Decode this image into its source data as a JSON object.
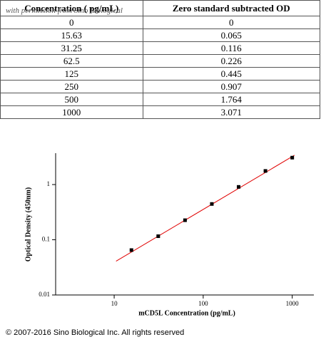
{
  "table": {
    "header": [
      "Concentration ( pg/mL)",
      "Zero standard subtracted OD"
    ],
    "watermark": "with permission from Sino Biological",
    "rows": [
      [
        0,
        0
      ],
      [
        15.63,
        0.065
      ],
      [
        31.25,
        0.116
      ],
      [
        62.5,
        0.226
      ],
      [
        125,
        0.445
      ],
      [
        250,
        0.907
      ],
      [
        500,
        1.764
      ],
      [
        1000,
        3.071
      ]
    ]
  },
  "chart_data": {
    "type": "scatter",
    "x_label": "mCD5L Concentration (pg/mL)",
    "y_label": "Optical Density (450nm)",
    "x": [
      15.63,
      31.25,
      62.5,
      125,
      250,
      500,
      1000
    ],
    "series": [
      {
        "color": "#000000",
        "values": [
          0.065,
          0.116,
          0.226,
          0.445,
          0.907,
          1.764,
          3.071
        ]
      }
    ],
    "fit_line": {
      "color": "#e00000",
      "x": [
        10.5,
        1060
      ],
      "y": [
        0.041,
        3.4
      ]
    },
    "xscale": "log",
    "yscale": "log",
    "xlim": [
      2.2,
      1750
    ],
    "ylim": [
      0.01,
      3.7
    ],
    "xticks": [
      10,
      100,
      1000
    ],
    "yticks": [
      0.01,
      0.1,
      1
    ]
  },
  "footer": "© 2007-2016 Sino Biological Inc. All rights reserved"
}
